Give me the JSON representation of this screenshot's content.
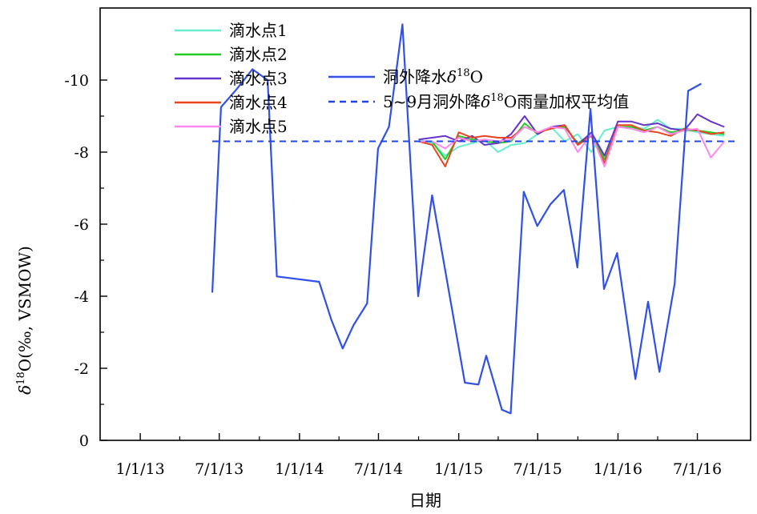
{
  "chart_data": {
    "type": "line",
    "xlabel": "日期",
    "ylabel": "δ18O(‰, VSMOW)",
    "ylabel_parts": {
      "delta": "δ",
      "sup": "18",
      "rest": "O(‰, VSMOW)"
    },
    "x_tick_labels": [
      "1/1/13",
      "7/1/13",
      "1/1/14",
      "7/1/14",
      "1/1/15",
      "7/1/15",
      "1/1/16",
      "7/1/16"
    ],
    "x_tick_dates": [
      "2013-01-01",
      "2013-07-01",
      "2014-01-01",
      "2014-07-01",
      "2015-01-01",
      "2015-07-01",
      "2016-01-01",
      "2016-07-01"
    ],
    "x_range": [
      "2012-10-01",
      "2016-10-31"
    ],
    "ylim": [
      0,
      -12
    ],
    "y_ticks": [
      0,
      -2,
      -4,
      -6,
      -8,
      -10
    ],
    "y_tick_labels": [
      "0",
      "-2",
      "-4",
      "-6",
      "-8",
      "-10"
    ],
    "legend_position": "top-left",
    "weighted_mean": {
      "name": "5~9月洞外降δ18O雨量加权平均值",
      "name_parts": {
        "pre": "5~9月洞外降",
        "delta": "δ",
        "sup": "18",
        "post": "O雨量加权平均值"
      },
      "value": -8.3,
      "x_start": "2013-06-15",
      "x_end": "2016-09-30",
      "color": "#2244ee"
    },
    "series": [
      {
        "name": "洞外降水δ18O",
        "name_parts": {
          "pre": "洞外降水",
          "delta": "δ",
          "sup": "18",
          "post": "O"
        },
        "color": "#3050e8",
        "points": [
          [
            "2013-06-15",
            -4.1
          ],
          [
            "2013-07-05",
            -9.25
          ],
          [
            "2013-08-10",
            -9.75
          ],
          [
            "2013-09-15",
            -10.3
          ],
          [
            "2013-10-20",
            -10.0
          ],
          [
            "2013-11-10",
            -4.55
          ],
          [
            "2014-02-15",
            -4.4
          ],
          [
            "2014-03-15",
            -3.35
          ],
          [
            "2014-04-10",
            -2.55
          ],
          [
            "2014-05-05",
            -3.2
          ],
          [
            "2014-06-05",
            -3.8
          ],
          [
            "2014-06-30",
            -8.1
          ],
          [
            "2014-07-25",
            -8.7
          ],
          [
            "2014-08-25",
            -11.55
          ],
          [
            "2014-09-30",
            -4.0
          ],
          [
            "2014-11-01",
            -6.8
          ],
          [
            "2015-01-15",
            -1.6
          ],
          [
            "2015-02-15",
            -1.55
          ],
          [
            "2015-03-05",
            -2.35
          ],
          [
            "2015-04-10",
            -0.85
          ],
          [
            "2015-04-30",
            -0.75
          ],
          [
            "2015-05-30",
            -6.9
          ],
          [
            "2015-06-30",
            -5.95
          ],
          [
            "2015-07-30",
            -6.55
          ],
          [
            "2015-08-30",
            -6.95
          ],
          [
            "2015-09-30",
            -4.8
          ],
          [
            "2015-10-30",
            -9.2
          ],
          [
            "2015-11-30",
            -4.2
          ],
          [
            "2015-12-30",
            -5.2
          ],
          [
            "2016-02-10",
            -1.7
          ],
          [
            "2016-03-10",
            -3.85
          ],
          [
            "2016-04-05",
            -1.9
          ],
          [
            "2016-05-10",
            -4.35
          ],
          [
            "2016-06-10",
            -9.7
          ],
          [
            "2016-07-10",
            -9.9
          ]
        ]
      },
      {
        "name": "滴水点1",
        "color": "#66eecc",
        "points": [
          [
            "2014-10-01",
            -8.35
          ],
          [
            "2014-11-01",
            -8.25
          ],
          [
            "2014-12-01",
            -7.9
          ],
          [
            "2015-01-01",
            -8.15
          ],
          [
            "2015-02-01",
            -8.25
          ],
          [
            "2015-03-01",
            -8.35
          ],
          [
            "2015-04-01",
            -8.0
          ],
          [
            "2015-05-01",
            -8.2
          ],
          [
            "2015-06-01",
            -8.25
          ],
          [
            "2015-07-01",
            -8.5
          ],
          [
            "2015-08-01",
            -8.7
          ],
          [
            "2015-09-01",
            -8.3
          ],
          [
            "2015-10-01",
            -8.5
          ],
          [
            "2015-11-01",
            -8.0
          ],
          [
            "2015-12-01",
            -8.6
          ],
          [
            "2016-01-01",
            -8.7
          ],
          [
            "2016-02-01",
            -8.7
          ],
          [
            "2016-03-01",
            -8.65
          ],
          [
            "2016-04-01",
            -8.9
          ],
          [
            "2016-05-01",
            -8.65
          ],
          [
            "2016-06-01",
            -8.65
          ],
          [
            "2016-07-01",
            -8.55
          ],
          [
            "2016-08-01",
            -8.5
          ],
          [
            "2016-09-01",
            -8.45
          ]
        ]
      },
      {
        "name": "滴水点2",
        "color": "#22cc22",
        "points": [
          [
            "2014-10-01",
            -8.3
          ],
          [
            "2014-11-01",
            -8.3
          ],
          [
            "2014-12-01",
            -7.8
          ],
          [
            "2015-01-01",
            -8.45
          ],
          [
            "2015-02-01",
            -8.35
          ],
          [
            "2015-03-01",
            -8.3
          ],
          [
            "2015-04-01",
            -8.25
          ],
          [
            "2015-05-01",
            -8.3
          ],
          [
            "2015-06-01",
            -8.8
          ],
          [
            "2015-07-01",
            -8.5
          ],
          [
            "2015-08-01",
            -8.7
          ],
          [
            "2015-09-01",
            -8.7
          ],
          [
            "2015-10-01",
            -8.25
          ],
          [
            "2015-11-01",
            -8.5
          ],
          [
            "2015-12-01",
            -7.8
          ],
          [
            "2016-01-01",
            -8.7
          ],
          [
            "2016-02-01",
            -8.7
          ],
          [
            "2016-03-01",
            -8.6
          ],
          [
            "2016-04-01",
            -8.7
          ],
          [
            "2016-05-01",
            -8.55
          ],
          [
            "2016-06-01",
            -8.6
          ],
          [
            "2016-07-01",
            -8.6
          ],
          [
            "2016-08-01",
            -8.55
          ],
          [
            "2016-09-01",
            -8.5
          ]
        ]
      },
      {
        "name": "滴水点3",
        "color": "#6633cc",
        "points": [
          [
            "2014-10-01",
            -8.35
          ],
          [
            "2014-11-01",
            -8.4
          ],
          [
            "2014-12-01",
            -8.45
          ],
          [
            "2015-01-01",
            -8.3
          ],
          [
            "2015-02-01",
            -8.45
          ],
          [
            "2015-03-01",
            -8.2
          ],
          [
            "2015-04-01",
            -8.25
          ],
          [
            "2015-05-01",
            -8.5
          ],
          [
            "2015-06-01",
            -9.0
          ],
          [
            "2015-07-01",
            -8.5
          ],
          [
            "2015-08-01",
            -8.7
          ],
          [
            "2015-09-01",
            -8.75
          ],
          [
            "2015-10-01",
            -8.2
          ],
          [
            "2015-11-01",
            -8.55
          ],
          [
            "2015-12-01",
            -7.9
          ],
          [
            "2016-01-01",
            -8.85
          ],
          [
            "2016-02-01",
            -8.85
          ],
          [
            "2016-03-01",
            -8.75
          ],
          [
            "2016-04-01",
            -8.8
          ],
          [
            "2016-05-01",
            -8.65
          ],
          [
            "2016-06-01",
            -8.6
          ],
          [
            "2016-07-01",
            -9.05
          ],
          [
            "2016-08-01",
            -8.85
          ],
          [
            "2016-09-01",
            -8.7
          ]
        ]
      },
      {
        "name": "滴水点4",
        "color": "#ee4422",
        "points": [
          [
            "2014-10-01",
            -8.3
          ],
          [
            "2014-11-01",
            -8.2
          ],
          [
            "2014-12-01",
            -7.6
          ],
          [
            "2015-01-01",
            -8.55
          ],
          [
            "2015-02-01",
            -8.4
          ],
          [
            "2015-03-01",
            -8.45
          ],
          [
            "2015-04-01",
            -8.4
          ],
          [
            "2015-05-01",
            -8.4
          ],
          [
            "2015-06-01",
            -8.7
          ],
          [
            "2015-07-01",
            -8.55
          ],
          [
            "2015-08-01",
            -8.65
          ],
          [
            "2015-09-01",
            -8.75
          ],
          [
            "2015-10-01",
            -8.2
          ],
          [
            "2015-11-01",
            -8.45
          ],
          [
            "2015-12-01",
            -7.7
          ],
          [
            "2016-01-01",
            -8.75
          ],
          [
            "2016-02-01",
            -8.75
          ],
          [
            "2016-03-01",
            -8.6
          ],
          [
            "2016-04-01",
            -8.55
          ],
          [
            "2016-05-01",
            -8.45
          ],
          [
            "2016-06-01",
            -8.65
          ],
          [
            "2016-07-01",
            -8.6
          ],
          [
            "2016-08-01",
            -8.5
          ],
          [
            "2016-09-01",
            -8.55
          ]
        ]
      },
      {
        "name": "滴水点5",
        "color": "#ff88ee",
        "points": [
          [
            "2014-10-01",
            -8.3
          ],
          [
            "2014-11-01",
            -8.3
          ],
          [
            "2014-12-01",
            -8.1
          ],
          [
            "2015-01-01",
            -8.4
          ],
          [
            "2015-02-01",
            -8.3
          ],
          [
            "2015-03-01",
            -8.35
          ],
          [
            "2015-04-01",
            -8.3
          ],
          [
            "2015-05-01",
            -8.35
          ],
          [
            "2015-06-01",
            -8.7
          ],
          [
            "2015-07-01",
            -8.55
          ],
          [
            "2015-08-01",
            -8.7
          ],
          [
            "2015-09-01",
            -8.65
          ],
          [
            "2015-10-01",
            -8.0
          ],
          [
            "2015-11-01",
            -8.5
          ],
          [
            "2015-12-01",
            -7.6
          ],
          [
            "2016-01-01",
            -8.7
          ],
          [
            "2016-02-01",
            -8.65
          ],
          [
            "2016-03-01",
            -8.55
          ],
          [
            "2016-04-01",
            -8.7
          ],
          [
            "2016-05-01",
            -8.5
          ],
          [
            "2016-06-01",
            -8.6
          ],
          [
            "2016-07-01",
            -8.65
          ],
          [
            "2016-08-01",
            -7.85
          ],
          [
            "2016-09-01",
            -8.3
          ]
        ]
      }
    ]
  }
}
